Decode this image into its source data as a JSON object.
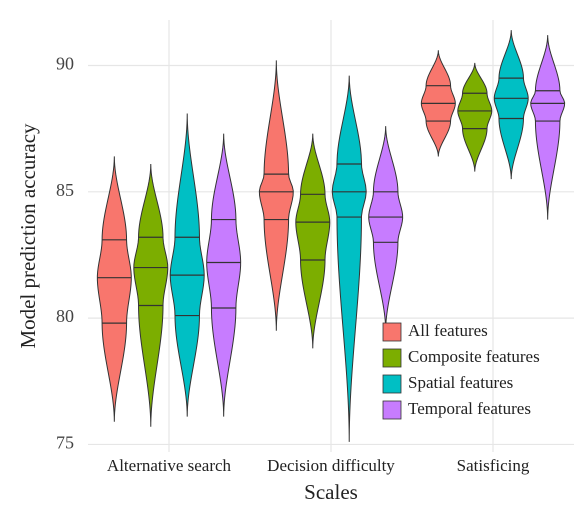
{
  "chart_data": {
    "type": "violin",
    "x_label": "Scales",
    "y_label": "Model prediction accuracy",
    "categories": [
      "Alternative search",
      "Decision difficulty",
      "Satisficing"
    ],
    "ylim": [
      74.7,
      91.8
    ],
    "yticks": [
      75,
      80,
      85,
      90
    ],
    "grid": true,
    "legend": "bottom-right",
    "series": [
      {
        "name": "All features",
        "color": "#f8766d",
        "min": [
          75.9,
          79.5,
          86.4
        ],
        "q1": [
          79.8,
          83.9,
          87.8
        ],
        "median": [
          81.6,
          85.0,
          88.5
        ],
        "q3": [
          83.1,
          85.7,
          89.2
        ],
        "max": [
          86.4,
          90.2,
          90.6
        ]
      },
      {
        "name": "Composite features",
        "color": "#7cae00",
        "min": [
          75.7,
          78.8,
          85.8
        ],
        "q1": [
          80.5,
          82.3,
          87.5
        ],
        "median": [
          82.0,
          83.8,
          88.2
        ],
        "q3": [
          83.2,
          84.9,
          88.9
        ],
        "max": [
          86.1,
          87.3,
          90.1
        ]
      },
      {
        "name": "Spatial features",
        "color": "#00bfc4",
        "min": [
          76.1,
          75.1,
          85.5
        ],
        "q1": [
          80.1,
          84.0,
          87.9
        ],
        "median": [
          81.7,
          85.0,
          88.7
        ],
        "q3": [
          83.2,
          86.1,
          89.5
        ],
        "max": [
          88.1,
          89.6,
          91.4
        ]
      },
      {
        "name": "Temporal features",
        "color": "#c77cff",
        "min": [
          76.1,
          79.5,
          83.9
        ],
        "q1": [
          80.4,
          83.0,
          87.8
        ],
        "median": [
          82.2,
          84.0,
          88.5
        ],
        "q3": [
          83.9,
          85.0,
          89.0
        ],
        "max": [
          87.3,
          87.6,
          91.2
        ]
      }
    ]
  }
}
